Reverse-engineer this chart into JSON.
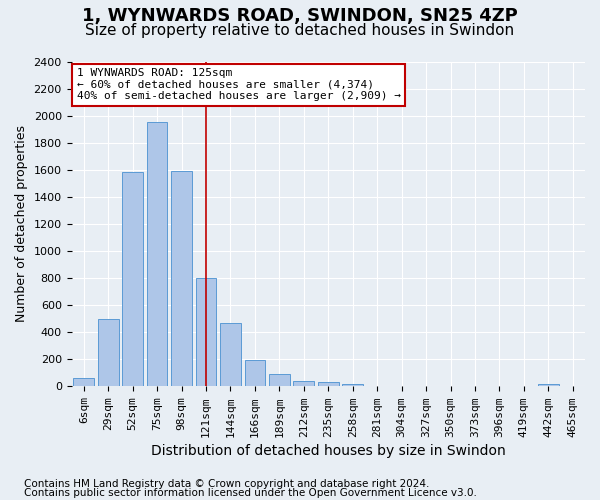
{
  "title": "1, WYNWARDS ROAD, SWINDON, SN25 4ZP",
  "subtitle": "Size of property relative to detached houses in Swindon",
  "xlabel": "Distribution of detached houses by size in Swindon",
  "ylabel": "Number of detached properties",
  "footnote1": "Contains HM Land Registry data © Crown copyright and database right 2024.",
  "footnote2": "Contains public sector information licensed under the Open Government Licence v3.0.",
  "categories": [
    "6sqm",
    "29sqm",
    "52sqm",
    "75sqm",
    "98sqm",
    "121sqm",
    "144sqm",
    "166sqm",
    "189sqm",
    "212sqm",
    "235sqm",
    "258sqm",
    "281sqm",
    "304sqm",
    "327sqm",
    "350sqm",
    "373sqm",
    "396sqm",
    "419sqm",
    "442sqm",
    "465sqm"
  ],
  "values": [
    60,
    500,
    1580,
    1950,
    1590,
    800,
    470,
    195,
    90,
    40,
    30,
    20,
    0,
    0,
    0,
    0,
    0,
    0,
    0,
    20,
    0
  ],
  "bar_color": "#aec6e8",
  "bar_edge_color": "#5b9bd5",
  "vline_x": 5,
  "vline_color": "#c00000",
  "annotation_text": "1 WYNWARDS ROAD: 125sqm\n← 60% of detached houses are smaller (4,374)\n40% of semi-detached houses are larger (2,909) →",
  "annotation_box_color": "white",
  "annotation_box_edge_color": "#c00000",
  "ylim": [
    0,
    2400
  ],
  "yticks": [
    0,
    200,
    400,
    600,
    800,
    1000,
    1200,
    1400,
    1600,
    1800,
    2000,
    2200,
    2400
  ],
  "background_color": "#e8eef4",
  "grid_color": "white",
  "title_fontsize": 13,
  "subtitle_fontsize": 11,
  "xlabel_fontsize": 10,
  "ylabel_fontsize": 9,
  "tick_fontsize": 8,
  "footnote_fontsize": 7.5
}
